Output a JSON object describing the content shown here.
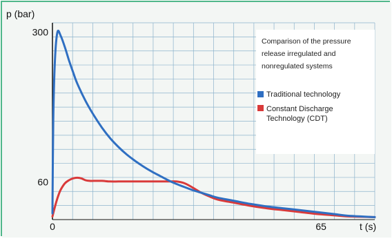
{
  "chart_data": {
    "type": "line",
    "title": "Comparison of the pressure release irregulated and nonregulated systems",
    "title_lines": [
      "Comparison of the pressure",
      "release irregulated and",
      "nonregulated systems"
    ],
    "ylabel": "p (bar)",
    "xlabel": "t (s)",
    "x_ticks": [
      {
        "value": 0,
        "label": "0"
      },
      {
        "value": 65,
        "label": "65"
      }
    ],
    "y_ticks": [
      {
        "value": 300,
        "label": "300"
      },
      {
        "value": 60,
        "label": "60"
      }
    ],
    "xlim": [
      0,
      78
    ],
    "ylim": [
      0,
      315
    ],
    "grid": true,
    "legend_position": "top-right",
    "series": [
      {
        "name": "Traditional technology",
        "color": "#2f6fc2",
        "x": [
          0,
          0.2,
          0.6,
          1.2,
          2,
          3,
          4,
          5,
          6,
          8,
          10,
          12,
          14,
          16,
          18,
          20,
          22,
          24,
          26,
          28,
          30,
          32,
          34,
          36,
          38,
          40,
          44,
          48,
          52,
          56,
          60,
          64,
          68,
          72,
          78
        ],
        "y": [
          10,
          160,
          255,
          300,
          294,
          276,
          255,
          236,
          218,
          190,
          167,
          147,
          130,
          116,
          104,
          94,
          85,
          77,
          70,
          63,
          57,
          52,
          47,
          43,
          39,
          35,
          30,
          25,
          21,
          18,
          15,
          12,
          9,
          6,
          4
        ]
      },
      {
        "name": "Constant Discharge Technology (CDT)",
        "color": "#d93a3a",
        "x": [
          0,
          0.5,
          1,
          1.5,
          2,
          3,
          4,
          5,
          6,
          7,
          8,
          9,
          10,
          12,
          14,
          16,
          18,
          20,
          22,
          24,
          26,
          28,
          30,
          32,
          34,
          36,
          38,
          40,
          44,
          48,
          52,
          56,
          60,
          64,
          68,
          72,
          78
        ],
        "y": [
          5,
          18,
          30,
          40,
          48,
          58,
          63,
          66,
          67,
          66,
          63,
          62,
          62,
          62,
          61,
          61,
          61,
          61,
          61,
          61,
          61,
          61,
          61,
          58,
          51,
          43,
          37,
          32,
          27,
          22,
          18,
          15,
          12,
          9,
          7,
          5,
          4
        ]
      }
    ],
    "annotations": [
      "p (bar)",
      "t (s)"
    ]
  },
  "colors": {
    "frame": "#4fb68a",
    "panel": "#f3f6f4",
    "grid": "#8cb3cc",
    "axis": "#111111"
  }
}
